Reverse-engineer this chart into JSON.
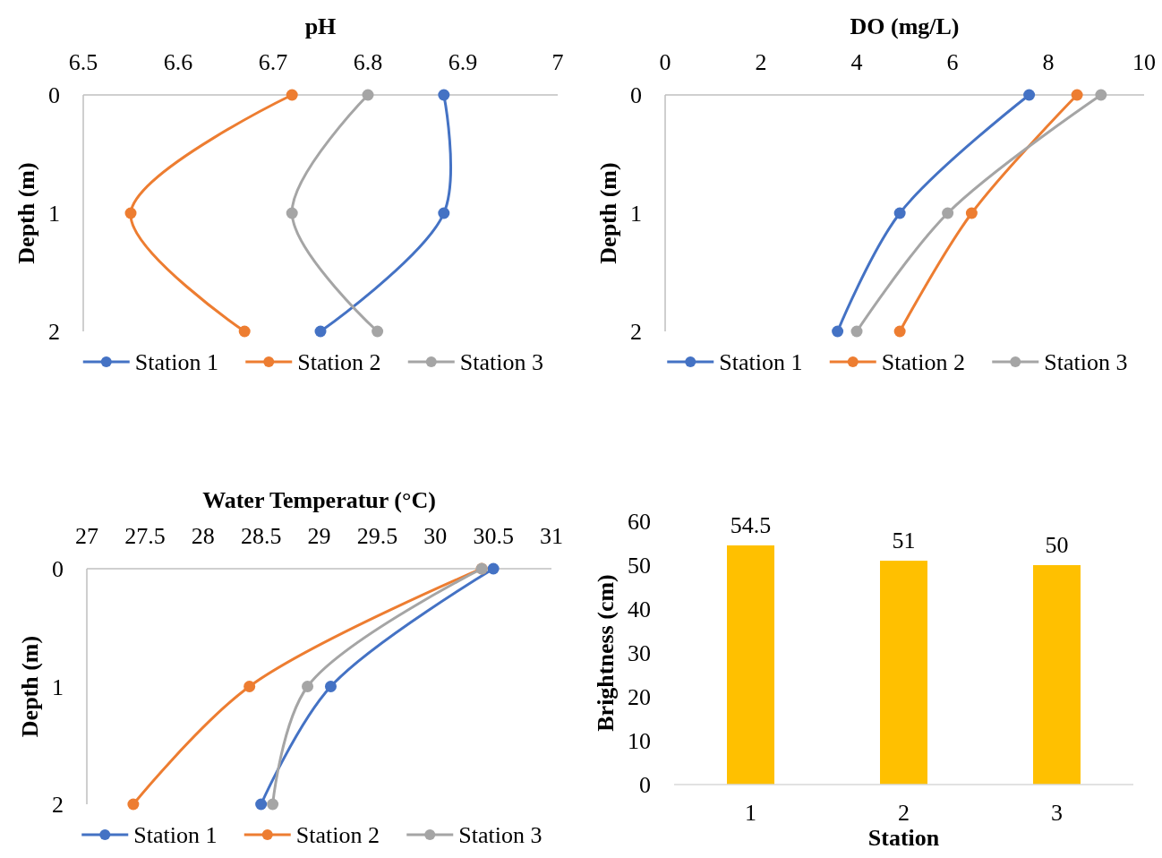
{
  "chart_data": [
    {
      "type": "line",
      "title": "pH",
      "ylabel": "Depth (m)",
      "xlim": [
        6.5,
        7
      ],
      "xticks": [
        6.5,
        6.6,
        6.7,
        6.8,
        6.9,
        7
      ],
      "ylim": [
        2,
        0
      ],
      "yticks": [
        0,
        1,
        2
      ],
      "marker": "circle",
      "legend": "bottom",
      "series": [
        {
          "name": "Station 1",
          "color": "#4472c4",
          "x": [
            6.88,
            6.88,
            6.75
          ],
          "values": [
            0,
            1,
            2
          ]
        },
        {
          "name": "Station 2",
          "color": "#ed7d31",
          "x": [
            6.72,
            6.55,
            6.67
          ],
          "values": [
            0,
            1,
            2
          ]
        },
        {
          "name": "Station 3",
          "color": "#a5a5a5",
          "x": [
            6.8,
            6.72,
            6.81
          ],
          "values": [
            0,
            1,
            2
          ]
        }
      ]
    },
    {
      "type": "line",
      "title": "DO (mg/L)",
      "ylabel": "Depth (m)",
      "xlim": [
        0,
        10
      ],
      "xticks": [
        0,
        2,
        4,
        6,
        8,
        10
      ],
      "ylim": [
        2,
        0
      ],
      "yticks": [
        0,
        1,
        2
      ],
      "marker": "circle",
      "legend": "bottom",
      "series": [
        {
          "name": "Station 1",
          "color": "#4472c4",
          "x": [
            7.6,
            4.9,
            3.6
          ],
          "values": [
            0,
            1,
            2
          ]
        },
        {
          "name": "Station 2",
          "color": "#ed7d31",
          "x": [
            8.6,
            6.4,
            4.9
          ],
          "values": [
            0,
            1,
            2
          ]
        },
        {
          "name": "Station 3",
          "color": "#a5a5a5",
          "x": [
            9.1,
            5.9,
            4.0
          ],
          "values": [
            0,
            1,
            2
          ]
        }
      ]
    },
    {
      "type": "line",
      "title": "Water Temperatur (°C)",
      "ylabel": "Depth (m)",
      "xlim": [
        27,
        31
      ],
      "xticks": [
        27,
        27.5,
        28,
        28.5,
        29,
        29.5,
        30,
        30.5,
        31
      ],
      "ylim": [
        2,
        0
      ],
      "yticks": [
        0,
        1,
        2
      ],
      "marker": "circle",
      "legend": "bottom",
      "series": [
        {
          "name": "Station 1",
          "color": "#4472c4",
          "x": [
            30.5,
            29.1,
            28.5
          ],
          "values": [
            0,
            1,
            2
          ]
        },
        {
          "name": "Station 2",
          "color": "#ed7d31",
          "x": [
            30.4,
            28.4,
            27.4
          ],
          "values": [
            0,
            1,
            2
          ]
        },
        {
          "name": "Station 3",
          "color": "#a5a5a5",
          "x": [
            30.4,
            28.9,
            28.6
          ],
          "values": [
            0,
            1,
            2
          ]
        }
      ]
    },
    {
      "type": "bar",
      "xlabel": "Station",
      "ylabel": "Brightness (cm)",
      "categories": [
        "1",
        "2",
        "3"
      ],
      "values": [
        54.5,
        51,
        50
      ],
      "color": "#ffc000",
      "ylim": [
        0,
        60
      ],
      "yticks": [
        0,
        10,
        20,
        30,
        40,
        50,
        60
      ],
      "data_labels": true
    }
  ]
}
